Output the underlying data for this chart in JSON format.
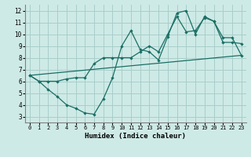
{
  "xlabel": "Humidex (Indice chaleur)",
  "background_color": "#ceeae6",
  "grid_color": "#a8ceca",
  "line_color": "#1a6e65",
  "xlim": [
    -0.5,
    23.5
  ],
  "ylim": [
    2.5,
    12.5
  ],
  "xticks": [
    0,
    1,
    2,
    3,
    4,
    5,
    6,
    7,
    8,
    9,
    10,
    11,
    12,
    13,
    14,
    15,
    16,
    17,
    18,
    19,
    20,
    21,
    22,
    23
  ],
  "yticks": [
    3,
    4,
    5,
    6,
    7,
    8,
    9,
    10,
    11,
    12
  ],
  "line_volatile_x": [
    0,
    1,
    2,
    3,
    4,
    5,
    6,
    7,
    8,
    9,
    10,
    11,
    12,
    13,
    14,
    15,
    16,
    17,
    18,
    19,
    20,
    21,
    22,
    23
  ],
  "line_volatile_y": [
    6.5,
    6.0,
    5.3,
    4.7,
    4.0,
    3.7,
    3.3,
    3.2,
    4.5,
    6.3,
    9.0,
    10.3,
    8.7,
    8.5,
    7.8,
    9.8,
    11.8,
    12.0,
    10.0,
    11.5,
    11.1,
    9.3,
    9.3,
    9.2
  ],
  "line_smooth_x": [
    0,
    1,
    2,
    3,
    4,
    5,
    6,
    7,
    8,
    9,
    10,
    11,
    12,
    13,
    14,
    15,
    16,
    17,
    18,
    19,
    20,
    21,
    22,
    23
  ],
  "line_smooth_y": [
    6.5,
    6.0,
    6.0,
    6.0,
    6.2,
    6.3,
    6.3,
    7.5,
    8.0,
    8.0,
    8.0,
    8.0,
    8.5,
    9.0,
    8.5,
    10.0,
    11.5,
    10.2,
    10.3,
    11.4,
    11.1,
    9.7,
    9.7,
    8.2
  ],
  "line_trend_x": [
    0,
    23
  ],
  "line_trend_y": [
    6.5,
    8.2
  ],
  "font_family": "monospace"
}
